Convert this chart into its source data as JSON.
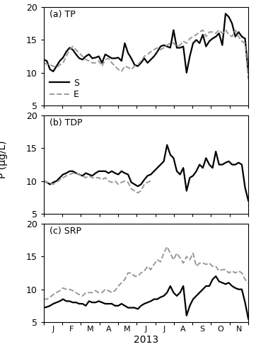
{
  "title_a": "(a) TP",
  "title_b": "(b) TDP",
  "title_c": "(c) SRP",
  "xlabel": "2013",
  "ylabel": "P (µg/L)",
  "x_tick_labels": [
    "J",
    "F",
    "M",
    "A",
    "M",
    "J",
    "J",
    "A",
    "S",
    "O",
    "N"
  ],
  "ylim": [
    5,
    20
  ],
  "yticks": [
    5,
    10,
    15,
    20
  ],
  "tp_s": [
    12.0,
    11.8,
    10.5,
    10.2,
    11.0,
    11.8,
    12.3,
    13.2,
    13.8,
    13.5,
    12.8,
    12.2,
    12.0,
    12.5,
    12.8,
    12.2,
    12.3,
    12.5,
    11.5,
    12.8,
    12.5,
    12.2,
    12.2,
    12.3,
    11.8,
    14.5,
    13.0,
    12.2,
    11.2,
    11.0,
    11.5,
    12.2,
    11.5,
    12.0,
    12.5,
    13.2,
    14.0,
    14.2,
    14.0,
    13.8,
    16.5,
    13.8,
    13.8,
    14.0,
    10.0,
    12.5,
    14.5,
    15.0,
    14.5,
    15.8,
    14.0,
    14.8,
    15.2,
    15.5,
    16.0,
    14.2,
    19.0,
    18.5,
    17.5,
    15.5,
    16.2,
    15.5,
    15.2,
    10.0
  ],
  "tp_e": [
    11.5,
    11.3,
    11.2,
    11.0,
    10.8,
    11.2,
    11.5,
    12.5,
    13.5,
    14.0,
    13.5,
    13.0,
    12.5,
    12.0,
    11.8,
    11.5,
    11.5,
    11.8,
    11.0,
    12.0,
    12.2,
    11.5,
    11.0,
    10.5,
    10.2,
    11.0,
    10.8,
    10.5,
    11.0,
    11.2,
    11.8,
    12.5,
    12.8,
    13.2,
    13.5,
    13.8,
    13.5,
    13.8,
    14.2,
    14.5,
    14.5,
    14.0,
    14.2,
    14.8,
    14.5,
    15.2,
    15.5,
    15.8,
    16.2,
    16.5,
    15.5,
    16.2,
    16.2,
    16.0,
    16.5,
    16.0,
    16.5,
    15.8,
    15.5,
    16.5,
    15.5,
    14.8,
    14.5,
    9.0
  ],
  "tdp_s": [
    10.0,
    9.8,
    9.5,
    9.8,
    10.0,
    10.5,
    11.0,
    11.2,
    11.5,
    11.5,
    11.2,
    11.0,
    10.8,
    11.2,
    11.0,
    10.8,
    11.2,
    11.5,
    11.5,
    11.5,
    11.2,
    11.5,
    11.2,
    11.0,
    11.5,
    11.2,
    11.0,
    9.8,
    9.5,
    9.2,
    9.5,
    10.2,
    10.8,
    11.0,
    11.5,
    12.0,
    12.5,
    13.0,
    15.5,
    14.0,
    13.5,
    11.5,
    11.0,
    12.0,
    8.5,
    10.5,
    10.8,
    11.5,
    12.5,
    12.0,
    13.5,
    12.5,
    12.0,
    14.5,
    12.5,
    12.5,
    12.8,
    13.0,
    12.5,
    12.5,
    12.8,
    12.5,
    9.0,
    7.0
  ],
  "tdp_e": [
    10.0,
    9.8,
    9.7,
    9.5,
    9.8,
    10.2,
    10.5,
    10.8,
    11.0,
    11.2,
    11.2,
    11.0,
    10.8,
    10.5,
    10.8,
    10.5,
    10.5,
    10.5,
    10.2,
    10.5,
    10.0,
    9.8,
    10.0,
    9.5,
    9.8,
    10.0,
    9.8,
    8.8,
    8.5,
    8.2,
    8.5,
    9.5,
    9.8,
    10.0,
    null,
    null,
    null,
    null,
    null,
    null,
    null,
    null,
    null,
    null,
    null,
    null,
    null,
    null,
    null,
    null,
    null,
    null,
    null,
    null,
    null,
    null,
    null,
    null,
    null,
    null,
    null,
    null,
    null,
    null
  ],
  "srp_s": [
    7.2,
    7.3,
    7.5,
    7.8,
    8.0,
    8.2,
    8.5,
    8.2,
    8.2,
    8.0,
    8.0,
    7.8,
    7.8,
    7.5,
    8.2,
    8.0,
    8.0,
    8.2,
    8.0,
    7.8,
    7.8,
    7.8,
    7.5,
    7.5,
    7.8,
    7.5,
    7.2,
    7.2,
    7.2,
    7.0,
    7.5,
    7.8,
    8.0,
    8.2,
    8.5,
    8.5,
    8.8,
    9.0,
    9.5,
    10.5,
    9.5,
    9.0,
    9.5,
    10.5,
    6.0,
    7.5,
    8.5,
    9.0,
    9.5,
    10.0,
    10.5,
    10.5,
    11.5,
    12.0,
    11.2,
    11.0,
    10.8,
    11.0,
    10.5,
    10.2,
    10.0,
    10.0,
    8.0,
    5.5
  ],
  "srp_e": [
    8.5,
    8.5,
    8.8,
    9.2,
    9.5,
    9.8,
    10.2,
    10.0,
    10.0,
    9.8,
    9.5,
    9.2,
    9.0,
    9.5,
    9.5,
    9.5,
    9.8,
    9.5,
    9.5,
    10.0,
    9.8,
    9.5,
    9.8,
    10.5,
    11.0,
    11.5,
    12.5,
    12.5,
    12.0,
    12.0,
    12.5,
    12.8,
    13.5,
    13.0,
    13.8,
    14.5,
    14.2,
    15.5,
    16.5,
    15.5,
    14.5,
    15.5,
    14.8,
    14.0,
    15.0,
    14.5,
    15.5,
    13.5,
    14.0,
    14.0,
    13.8,
    14.0,
    13.5,
    13.5,
    12.8,
    13.0,
    13.0,
    12.5,
    12.8,
    12.5,
    12.8,
    12.5,
    11.5,
    11.0
  ],
  "color_s": "#000000",
  "color_e": "#999999",
  "lw_s": 1.6,
  "lw_e": 1.4,
  "background_color": "#ffffff"
}
